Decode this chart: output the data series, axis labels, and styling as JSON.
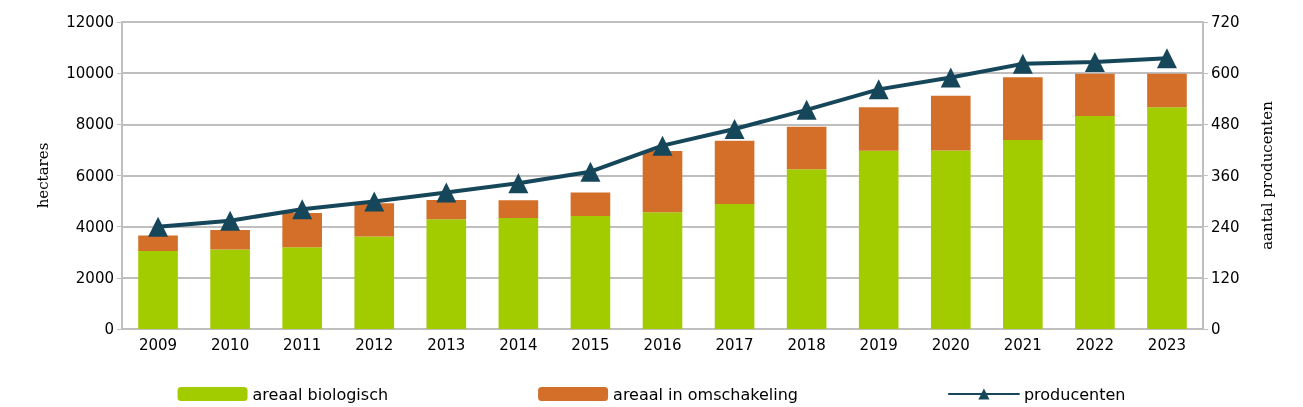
{
  "chart_data": {
    "type": "bar",
    "stacked": true,
    "categories": [
      "2009",
      "2010",
      "2011",
      "2012",
      "2013",
      "2014",
      "2015",
      "2016",
      "2017",
      "2018",
      "2019",
      "2020",
      "2021",
      "2022",
      "2023"
    ],
    "series": [
      {
        "name": "areaal biologisch",
        "color": "#a3cc00",
        "values": [
          3050,
          3110,
          3200,
          3620,
          4290,
          4340,
          4420,
          4560,
          4890,
          6240,
          6970,
          6980,
          7390,
          8330,
          8670
        ]
      },
      {
        "name": "areaal in omschakeling",
        "color": "#d36f28",
        "values": [
          600,
          760,
          1330,
          1300,
          750,
          690,
          920,
          2400,
          2470,
          1670,
          1700,
          2140,
          2450,
          1650,
          1310
        ]
      },
      {
        "name": "producenten",
        "type": "line",
        "axis": "y2",
        "color": "#164659",
        "marker": "triangle",
        "values": [
          240,
          254,
          281,
          299,
          320,
          342,
          369,
          430,
          469,
          514,
          562,
          590,
          622,
          626,
          635
        ]
      }
    ],
    "ylabel": "hectares",
    "y2label": "aantal producenten",
    "ylim": [
      0,
      12000
    ],
    "yticks": [
      0,
      2000,
      4000,
      6000,
      8000,
      10000,
      12000
    ],
    "y2lim": [
      0,
      720
    ],
    "y2ticks": [
      0,
      120,
      240,
      360,
      480,
      600,
      720
    ],
    "grid": "y",
    "legend": "bottom"
  }
}
